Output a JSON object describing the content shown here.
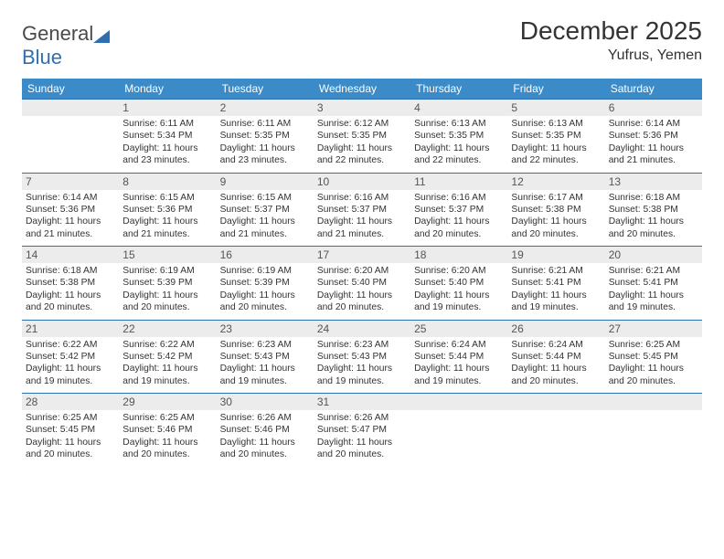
{
  "logo": {
    "text_general": "General",
    "text_blue": "Blue"
  },
  "title": "December 2025",
  "location": "Yufrus, Yemen",
  "colors": {
    "header_bg": "#3b8bc8",
    "header_text": "#ffffff",
    "daynum_bg": "#ececec",
    "daynum_text": "#555555",
    "cell_text": "#333333",
    "row_border": "#2f6fb0",
    "logo_gray": "#6b6b6b",
    "logo_blue": "#2f6fb0"
  },
  "day_names": [
    "Sunday",
    "Monday",
    "Tuesday",
    "Wednesday",
    "Thursday",
    "Friday",
    "Saturday"
  ],
  "weeks": [
    [
      null,
      {
        "n": "1",
        "sunrise": "6:11 AM",
        "sunset": "5:34 PM",
        "day_h": 11,
        "day_m": 23
      },
      {
        "n": "2",
        "sunrise": "6:11 AM",
        "sunset": "5:35 PM",
        "day_h": 11,
        "day_m": 23
      },
      {
        "n": "3",
        "sunrise": "6:12 AM",
        "sunset": "5:35 PM",
        "day_h": 11,
        "day_m": 22
      },
      {
        "n": "4",
        "sunrise": "6:13 AM",
        "sunset": "5:35 PM",
        "day_h": 11,
        "day_m": 22
      },
      {
        "n": "5",
        "sunrise": "6:13 AM",
        "sunset": "5:35 PM",
        "day_h": 11,
        "day_m": 22
      },
      {
        "n": "6",
        "sunrise": "6:14 AM",
        "sunset": "5:36 PM",
        "day_h": 11,
        "day_m": 21
      }
    ],
    [
      {
        "n": "7",
        "sunrise": "6:14 AM",
        "sunset": "5:36 PM",
        "day_h": 11,
        "day_m": 21
      },
      {
        "n": "8",
        "sunrise": "6:15 AM",
        "sunset": "5:36 PM",
        "day_h": 11,
        "day_m": 21
      },
      {
        "n": "9",
        "sunrise": "6:15 AM",
        "sunset": "5:37 PM",
        "day_h": 11,
        "day_m": 21
      },
      {
        "n": "10",
        "sunrise": "6:16 AM",
        "sunset": "5:37 PM",
        "day_h": 11,
        "day_m": 21
      },
      {
        "n": "11",
        "sunrise": "6:16 AM",
        "sunset": "5:37 PM",
        "day_h": 11,
        "day_m": 20
      },
      {
        "n": "12",
        "sunrise": "6:17 AM",
        "sunset": "5:38 PM",
        "day_h": 11,
        "day_m": 20
      },
      {
        "n": "13",
        "sunrise": "6:18 AM",
        "sunset": "5:38 PM",
        "day_h": 11,
        "day_m": 20
      }
    ],
    [
      {
        "n": "14",
        "sunrise": "6:18 AM",
        "sunset": "5:38 PM",
        "day_h": 11,
        "day_m": 20
      },
      {
        "n": "15",
        "sunrise": "6:19 AM",
        "sunset": "5:39 PM",
        "day_h": 11,
        "day_m": 20
      },
      {
        "n": "16",
        "sunrise": "6:19 AM",
        "sunset": "5:39 PM",
        "day_h": 11,
        "day_m": 20
      },
      {
        "n": "17",
        "sunrise": "6:20 AM",
        "sunset": "5:40 PM",
        "day_h": 11,
        "day_m": 20
      },
      {
        "n": "18",
        "sunrise": "6:20 AM",
        "sunset": "5:40 PM",
        "day_h": 11,
        "day_m": 19
      },
      {
        "n": "19",
        "sunrise": "6:21 AM",
        "sunset": "5:41 PM",
        "day_h": 11,
        "day_m": 19
      },
      {
        "n": "20",
        "sunrise": "6:21 AM",
        "sunset": "5:41 PM",
        "day_h": 11,
        "day_m": 19
      }
    ],
    [
      {
        "n": "21",
        "sunrise": "6:22 AM",
        "sunset": "5:42 PM",
        "day_h": 11,
        "day_m": 19
      },
      {
        "n": "22",
        "sunrise": "6:22 AM",
        "sunset": "5:42 PM",
        "day_h": 11,
        "day_m": 19
      },
      {
        "n": "23",
        "sunrise": "6:23 AM",
        "sunset": "5:43 PM",
        "day_h": 11,
        "day_m": 19
      },
      {
        "n": "24",
        "sunrise": "6:23 AM",
        "sunset": "5:43 PM",
        "day_h": 11,
        "day_m": 19
      },
      {
        "n": "25",
        "sunrise": "6:24 AM",
        "sunset": "5:44 PM",
        "day_h": 11,
        "day_m": 19
      },
      {
        "n": "26",
        "sunrise": "6:24 AM",
        "sunset": "5:44 PM",
        "day_h": 11,
        "day_m": 20
      },
      {
        "n": "27",
        "sunrise": "6:25 AM",
        "sunset": "5:45 PM",
        "day_h": 11,
        "day_m": 20
      }
    ],
    [
      {
        "n": "28",
        "sunrise": "6:25 AM",
        "sunset": "5:45 PM",
        "day_h": 11,
        "day_m": 20
      },
      {
        "n": "29",
        "sunrise": "6:25 AM",
        "sunset": "5:46 PM",
        "day_h": 11,
        "day_m": 20
      },
      {
        "n": "30",
        "sunrise": "6:26 AM",
        "sunset": "5:46 PM",
        "day_h": 11,
        "day_m": 20
      },
      {
        "n": "31",
        "sunrise": "6:26 AM",
        "sunset": "5:47 PM",
        "day_h": 11,
        "day_m": 20
      },
      null,
      null,
      null
    ]
  ],
  "labels": {
    "sunrise": "Sunrise:",
    "sunset": "Sunset:",
    "daylight_tmpl": "Daylight: {h} hours and {m} minutes."
  }
}
